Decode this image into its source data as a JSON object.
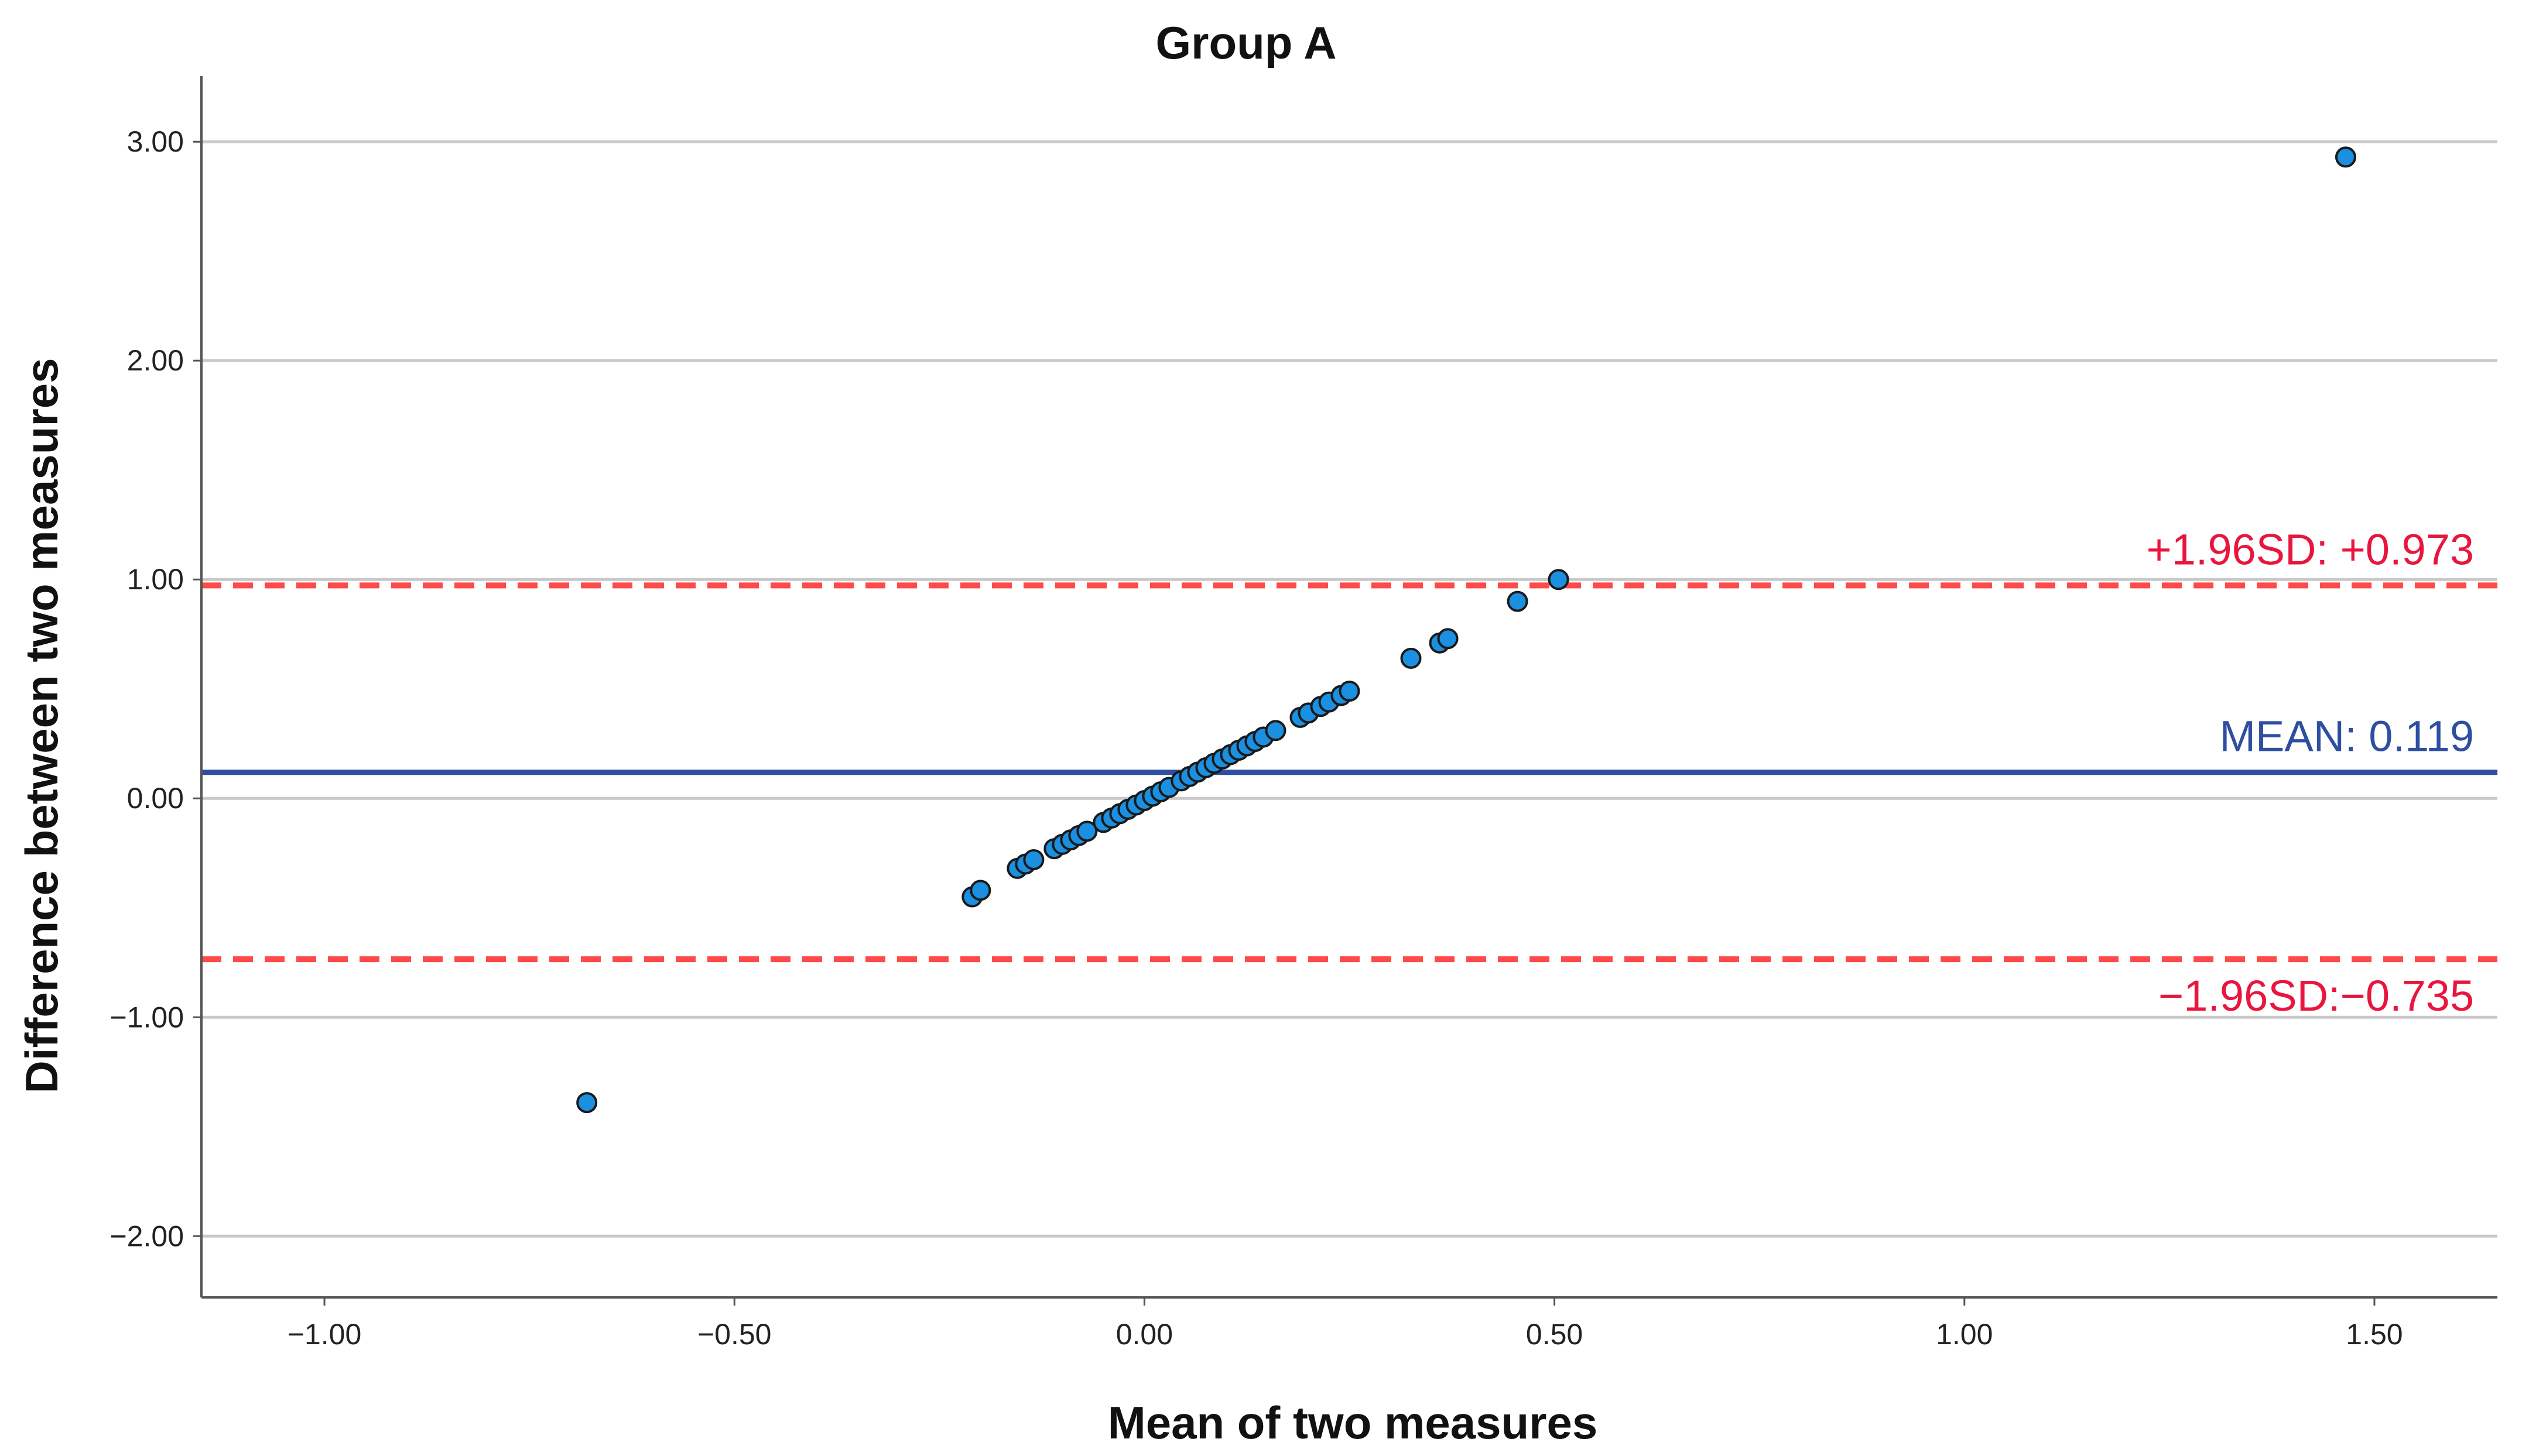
{
  "chart_data": {
    "type": "scatter",
    "title": "Group A",
    "xlabel": "Mean of two measures",
    "ylabel": "Difference between two measures",
    "xlim": [
      -1.15,
      1.65
    ],
    "ylim": [
      -2.28,
      3.3
    ],
    "x_ticks": [
      -1.0,
      -0.5,
      0.0,
      0.5,
      1.0,
      1.5
    ],
    "x_tick_labels": [
      "−1.00",
      "−0.50",
      "0.00",
      "0.50",
      "1.00",
      "1.50"
    ],
    "y_ticks": [
      -2.0,
      -1.0,
      0.0,
      1.0,
      2.0,
      3.0
    ],
    "y_tick_labels": [
      "−2.00",
      "−1.00",
      "0.00",
      "1.00",
      "2.00",
      "3.00"
    ],
    "grid": "horizontal",
    "reference_lines": [
      {
        "y": 0.973,
        "label": "+1.96SD: +0.973",
        "color": "#ff4a4a",
        "label_color": "#e8163e",
        "style": "dashed"
      },
      {
        "y": 0.119,
        "label": "MEAN: 0.119",
        "color": "#2e4fa0",
        "label_color": "#2e4fa0",
        "style": "solid"
      },
      {
        "y": -0.735,
        "label": "−1.96SD:−0.735",
        "color": "#ff4a4a",
        "label_color": "#e8163e",
        "style": "dashed"
      }
    ],
    "point_color": "#1b8fe0",
    "point_edge_color": "#1a1a1a",
    "points": [
      {
        "x": -0.68,
        "y": -1.39
      },
      {
        "x": -0.21,
        "y": -0.45
      },
      {
        "x": -0.2,
        "y": -0.42
      },
      {
        "x": -0.155,
        "y": -0.32
      },
      {
        "x": -0.145,
        "y": -0.3
      },
      {
        "x": -0.135,
        "y": -0.28
      },
      {
        "x": -0.11,
        "y": -0.23
      },
      {
        "x": -0.1,
        "y": -0.21
      },
      {
        "x": -0.09,
        "y": -0.19
      },
      {
        "x": -0.08,
        "y": -0.17
      },
      {
        "x": -0.07,
        "y": -0.15
      },
      {
        "x": -0.05,
        "y": -0.11
      },
      {
        "x": -0.04,
        "y": -0.09
      },
      {
        "x": -0.03,
        "y": -0.07
      },
      {
        "x": -0.02,
        "y": -0.05
      },
      {
        "x": -0.01,
        "y": -0.03
      },
      {
        "x": 0.0,
        "y": -0.01
      },
      {
        "x": 0.01,
        "y": 0.01
      },
      {
        "x": 0.02,
        "y": 0.03
      },
      {
        "x": 0.03,
        "y": 0.05
      },
      {
        "x": 0.045,
        "y": 0.08
      },
      {
        "x": 0.055,
        "y": 0.1
      },
      {
        "x": 0.065,
        "y": 0.12
      },
      {
        "x": 0.075,
        "y": 0.14
      },
      {
        "x": 0.085,
        "y": 0.16
      },
      {
        "x": 0.095,
        "y": 0.18
      },
      {
        "x": 0.105,
        "y": 0.2
      },
      {
        "x": 0.115,
        "y": 0.22
      },
      {
        "x": 0.125,
        "y": 0.24
      },
      {
        "x": 0.135,
        "y": 0.26
      },
      {
        "x": 0.145,
        "y": 0.28
      },
      {
        "x": 0.16,
        "y": 0.31
      },
      {
        "x": 0.19,
        "y": 0.37
      },
      {
        "x": 0.2,
        "y": 0.39
      },
      {
        "x": 0.215,
        "y": 0.42
      },
      {
        "x": 0.225,
        "y": 0.44
      },
      {
        "x": 0.24,
        "y": 0.47
      },
      {
        "x": 0.25,
        "y": 0.49
      },
      {
        "x": 0.325,
        "y": 0.64
      },
      {
        "x": 0.36,
        "y": 0.71
      },
      {
        "x": 0.37,
        "y": 0.73
      },
      {
        "x": 0.455,
        "y": 0.9
      },
      {
        "x": 0.505,
        "y": 1.0
      },
      {
        "x": 1.465,
        "y": 2.93
      }
    ]
  }
}
